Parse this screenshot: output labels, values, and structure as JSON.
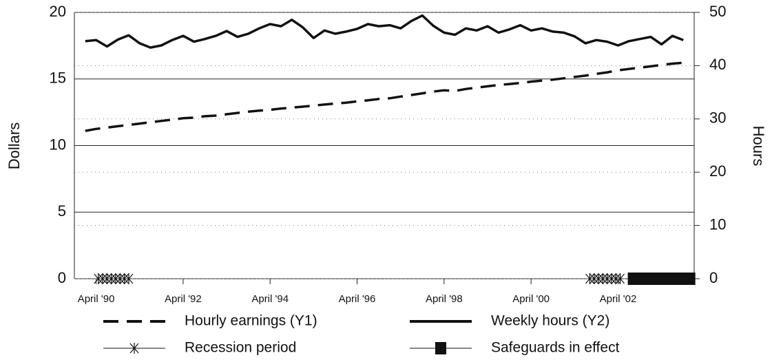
{
  "chart_data": {
    "type": "line",
    "y_label": "Dollars",
    "y2_label": "Hours",
    "xlim": [
      1989.75,
      2004.0
    ],
    "xticks": [
      {
        "value": 1990.25,
        "label": "April '90"
      },
      {
        "value": 1992.25,
        "label": "April '92"
      },
      {
        "value": 1994.25,
        "label": "April '94"
      },
      {
        "value": 1996.25,
        "label": "April '96"
      },
      {
        "value": 1998.25,
        "label": "April '98"
      },
      {
        "value": 2000.25,
        "label": "April '00"
      },
      {
        "value": 2002.25,
        "label": "April '02"
      }
    ],
    "ylim": [
      0,
      20
    ],
    "yticks": [
      0,
      5,
      10,
      15,
      20
    ],
    "y2lim": [
      0,
      50
    ],
    "y2ticks": [
      0,
      10,
      20,
      30,
      40,
      50
    ],
    "grid": true,
    "series": [
      {
        "name": "Hourly earnings (Y1)",
        "color": "#111111",
        "dash": true,
        "x": [
          1990,
          1990.25,
          1990.5,
          1990.75,
          1991,
          1991.25,
          1991.5,
          1991.75,
          1992,
          1992.25,
          1992.5,
          1992.75,
          1993,
          1993.25,
          1993.5,
          1993.75,
          1994,
          1994.25,
          1994.5,
          1994.75,
          1995,
          1995.25,
          1995.5,
          1995.75,
          1996,
          1996.25,
          1996.5,
          1996.75,
          1997,
          1997.25,
          1997.5,
          1997.75,
          1998,
          1998.25,
          1998.5,
          1998.75,
          1999,
          1999.25,
          1999.5,
          1999.75,
          2000,
          2000.25,
          2000.5,
          2000.75,
          2001,
          2001.25,
          2001.5,
          2001.75,
          2002,
          2002.25,
          2002.5,
          2002.75,
          2003,
          2003.25,
          2003.5,
          2003.75
        ],
        "values": [
          11.1,
          11.25,
          11.35,
          11.45,
          11.55,
          11.65,
          11.75,
          11.85,
          11.95,
          12.05,
          12.1,
          12.2,
          12.25,
          12.35,
          12.45,
          12.55,
          12.62,
          12.68,
          12.78,
          12.85,
          12.92,
          13.0,
          13.08,
          13.15,
          13.22,
          13.32,
          13.4,
          13.5,
          13.55,
          13.68,
          13.8,
          13.92,
          14.05,
          14.15,
          14.1,
          14.25,
          14.35,
          14.45,
          14.55,
          14.62,
          14.7,
          14.8,
          14.88,
          14.95,
          15.05,
          15.15,
          15.25,
          15.38,
          15.5,
          15.65,
          15.75,
          15.85,
          15.95,
          16.05,
          16.15,
          16.22
        ]
      },
      {
        "name": "Weekly hours (Y2)",
        "color": "#111111",
        "axis": "y2",
        "x": [
          1990,
          1990.25,
          1990.5,
          1990.75,
          1991,
          1991.25,
          1991.5,
          1991.75,
          1992,
          1992.25,
          1992.5,
          1992.75,
          1993,
          1993.25,
          1993.5,
          1993.75,
          1994,
          1994.25,
          1994.5,
          1994.75,
          1995,
          1995.25,
          1995.5,
          1995.75,
          1996,
          1996.25,
          1996.5,
          1996.75,
          1997,
          1997.25,
          1997.5,
          1997.75,
          1998,
          1998.25,
          1998.5,
          1998.75,
          1999,
          1999.25,
          1999.5,
          1999.75,
          2000,
          2000.25,
          2000.5,
          2000.75,
          2001,
          2001.25,
          2001.5,
          2001.75,
          2002,
          2002.25,
          2002.5,
          2002.75,
          2003,
          2003.25,
          2003.5,
          2003.75
        ],
        "values": [
          44.6,
          44.8,
          43.6,
          44.9,
          45.7,
          44.2,
          43.4,
          43.8,
          44.8,
          45.6,
          44.5,
          45.0,
          45.6,
          46.5,
          45.4,
          46.0,
          47.0,
          47.8,
          47.4,
          48.6,
          47.2,
          45.2,
          46.6,
          46.0,
          46.4,
          46.9,
          47.8,
          47.4,
          47.6,
          47.0,
          48.4,
          49.4,
          47.5,
          46.2,
          45.8,
          47.0,
          46.6,
          47.4,
          46.2,
          46.8,
          47.6,
          46.6,
          47.0,
          46.4,
          46.2,
          45.5,
          44.2,
          44.8,
          44.5,
          43.8,
          44.6,
          45.0,
          45.4,
          44.0,
          45.6,
          44.8
        ]
      },
      {
        "name": "Recession period",
        "color": "#111111",
        "marker": "x",
        "x": [
          1990.3,
          1990.4,
          1990.5,
          1990.6,
          1990.7,
          1990.8,
          1990.9,
          1991.0,
          2001.6,
          2001.7,
          2001.8,
          2001.9,
          2002.0,
          2002.1,
          2002.2,
          2002.3
        ],
        "values": [
          0,
          0,
          0,
          0,
          0,
          0,
          0,
          0,
          0,
          0,
          0,
          0,
          0,
          0,
          0,
          0
        ]
      },
      {
        "name": "Safeguards in effect",
        "color": "#111111",
        "marker": "square",
        "x": [
          2002.6,
          2002.7,
          2002.8,
          2002.9,
          2003.0,
          2003.1,
          2003.2,
          2003.3,
          2003.4,
          2003.5,
          2003.6,
          2003.7,
          2003.8,
          2003.9
        ],
        "values": [
          0,
          0,
          0,
          0,
          0,
          0,
          0,
          0,
          0,
          0,
          0,
          0,
          0,
          0
        ]
      }
    ]
  }
}
